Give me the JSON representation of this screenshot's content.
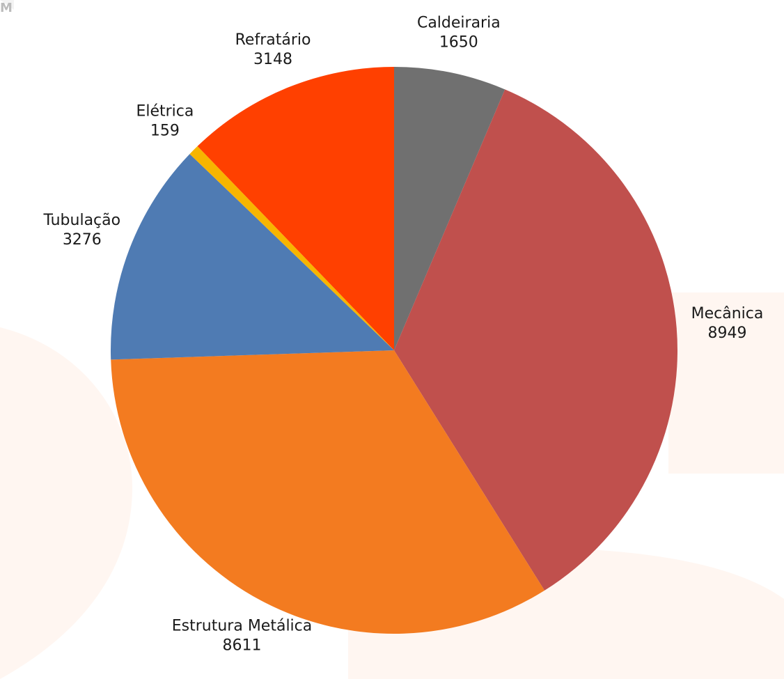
{
  "chart_data": {
    "type": "pie",
    "categories": [
      "Caldeiraria",
      "Mecânica",
      "Estrutura Metálica",
      "Tubulação",
      "Elétrica",
      "Refratário"
    ],
    "values": [
      1650,
      8949,
      8611,
      3276,
      159,
      3148
    ],
    "colors": [
      "#707070",
      "#c0504d",
      "#f37b20",
      "#4f7bb3",
      "#f7b500",
      "#ff4000"
    ]
  }
}
